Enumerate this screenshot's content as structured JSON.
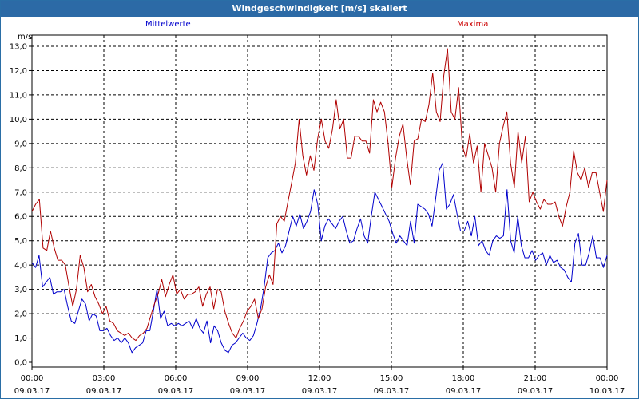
{
  "window": {
    "title": "Windgeschwindigkeit [m/s] skaliert"
  },
  "colors": {
    "titlebar": "#2c6aa6",
    "mean": "#0000cc",
    "max": "#b00000",
    "grid": "#000000"
  },
  "chart_data": {
    "type": "line",
    "title": "Windgeschwindigkeit [m/s] skaliert",
    "ylabel": "m/s",
    "ylim": [
      0,
      13.5
    ],
    "yticks": [
      "0,0",
      "1,0",
      "2,0",
      "3,0",
      "4,0",
      "5,0",
      "6,0",
      "7,0",
      "8,0",
      "9,0",
      "10,0",
      "11,0",
      "12,0",
      "13,0"
    ],
    "xlim": [
      0,
      24
    ],
    "xticks": [
      {
        "time": "00:00",
        "date": "09.03.17"
      },
      {
        "time": "03:00",
        "date": "09.03.17"
      },
      {
        "time": "06:00",
        "date": "09.03.17"
      },
      {
        "time": "09:00",
        "date": "09.03.17"
      },
      {
        "time": "12:00",
        "date": "09.03.17"
      },
      {
        "time": "15:00",
        "date": "09.03.17"
      },
      {
        "time": "18:00",
        "date": "09.03.17"
      },
      {
        "time": "21:00",
        "date": "09.03.17"
      },
      {
        "time": "00:00",
        "date": "10.03.17"
      }
    ],
    "grid": true,
    "series": [
      {
        "name": "Mittelwerte",
        "values": [
          4.1,
          3.9,
          4.4,
          3.1,
          3.3,
          3.5,
          2.8,
          2.9,
          2.9,
          3.0,
          2.3,
          1.7,
          1.6,
          2.1,
          2.6,
          2.4,
          1.7,
          2.0,
          1.9,
          1.3,
          1.3,
          1.4,
          1.1,
          0.9,
          1.0,
          0.8,
          1.0,
          0.8,
          0.4,
          0.6,
          0.7,
          0.8,
          1.3,
          1.3,
          2.1,
          3.0,
          1.8,
          2.1,
          1.5,
          1.6,
          1.5,
          1.6,
          1.5,
          1.6,
          1.7,
          1.4,
          1.8,
          1.4,
          1.2,
          1.7,
          0.8,
          1.5,
          1.3,
          0.8,
          0.5,
          0.4,
          0.7,
          0.8,
          1.0,
          1.2,
          1.0,
          0.9,
          1.1,
          1.6,
          2.2,
          3.1,
          4.3,
          4.5,
          4.6,
          4.9,
          4.5,
          4.8,
          5.4,
          6.0,
          5.6,
          6.1,
          5.5,
          5.8,
          6.2,
          7.1,
          6.5,
          5.0,
          5.6,
          5.9,
          5.7,
          5.5,
          5.8,
          6.0,
          5.4,
          4.9,
          5.0,
          5.5,
          5.9,
          5.2,
          4.9,
          6.0,
          7.0,
          6.7,
          6.4,
          6.1,
          5.8,
          5.3,
          4.9,
          5.2,
          5.0,
          4.8,
          5.8,
          4.9,
          6.5,
          6.4,
          6.3,
          6.1,
          5.6,
          6.7,
          7.9,
          8.2,
          6.3,
          6.5,
          6.9,
          6.1,
          5.4,
          5.4,
          5.8,
          5.2,
          6.0,
          4.8,
          5.0,
          4.6,
          4.4,
          5.0,
          5.2,
          5.1,
          5.2,
          7.1,
          5.0,
          4.5,
          6.0,
          4.8,
          4.3,
          4.3,
          4.6,
          4.2,
          4.4,
          4.5,
          4.0,
          4.4,
          4.1,
          4.2,
          3.9,
          3.8,
          3.5,
          3.3,
          4.9,
          5.3,
          4.0,
          4.0,
          4.5,
          5.2,
          4.3,
          4.3,
          3.9,
          4.4
        ]
      },
      {
        "name": "Maxima",
        "values": [
          6.2,
          6.5,
          6.7,
          4.7,
          4.6,
          5.4,
          4.7,
          4.2,
          4.2,
          4.0,
          3.1,
          2.3,
          3.0,
          4.4,
          3.9,
          2.9,
          3.2,
          2.7,
          2.4,
          2.0,
          2.3,
          1.7,
          1.6,
          1.3,
          1.2,
          1.1,
          1.2,
          1.0,
          0.9,
          1.1,
          1.2,
          1.4,
          1.9,
          2.4,
          2.8,
          3.4,
          2.7,
          3.2,
          3.6,
          2.8,
          3.0,
          2.6,
          2.8,
          2.8,
          2.9,
          3.1,
          2.3,
          2.8,
          3.1,
          2.2,
          3.0,
          2.9,
          2.1,
          1.6,
          1.2,
          1.0,
          1.4,
          1.7,
          2.1,
          2.3,
          2.6,
          1.8,
          2.2,
          3.1,
          3.6,
          3.2,
          5.7,
          6.0,
          5.8,
          6.6,
          7.4,
          8.2,
          10.0,
          8.5,
          7.7,
          8.5,
          7.9,
          9.2,
          10.0,
          9.1,
          8.8,
          9.6,
          10.8,
          9.6,
          10.0,
          8.4,
          8.4,
          9.3,
          9.3,
          9.1,
          9.1,
          8.6,
          10.8,
          10.3,
          10.7,
          10.3,
          9.0,
          7.2,
          8.4,
          9.3,
          9.8,
          8.4,
          7.3,
          9.1,
          9.2,
          10.0,
          9.9,
          10.6,
          11.9,
          10.3,
          9.9,
          11.8,
          12.9,
          10.3,
          10.0,
          11.3,
          8.9,
          8.4,
          9.4,
          8.2,
          8.9,
          7.0,
          9.0,
          8.5,
          8.0,
          7.0,
          9.0,
          9.7,
          10.3,
          8.2,
          7.2,
          9.5,
          8.2,
          9.3,
          6.6,
          7.0,
          6.6,
          6.3,
          6.7,
          6.5,
          6.5,
          6.6,
          6.0,
          5.6,
          6.4,
          7.0,
          8.7,
          7.8,
          7.5,
          8.0,
          7.2,
          7.8,
          7.8,
          7.0,
          6.2,
          7.5
        ]
      }
    ]
  }
}
